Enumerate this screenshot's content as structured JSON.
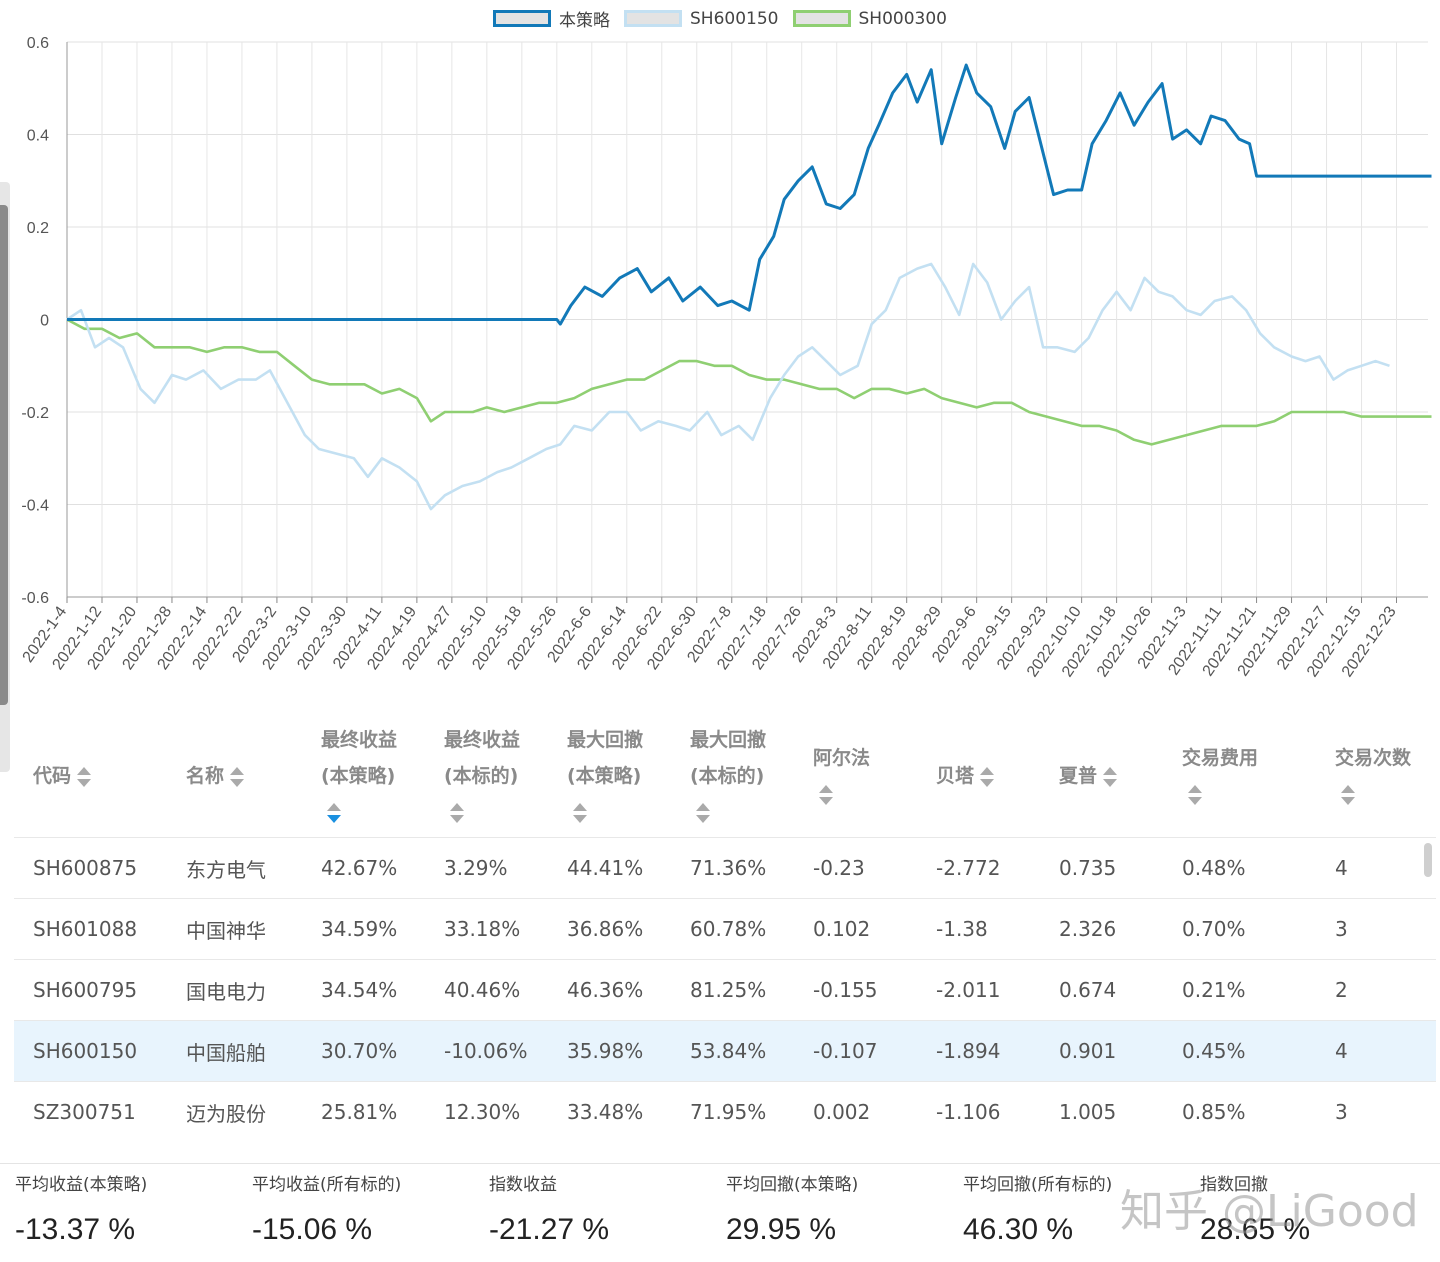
{
  "legend": [
    {
      "label": "本策略",
      "color": "#1279b8",
      "fill": "#e3e3e3"
    },
    {
      "label": "SH600150",
      "color": "#c3e0f2",
      "fill": "#e3e3e3"
    },
    {
      "label": "SH000300",
      "color": "#8fcf72",
      "fill": "#e3e3e3"
    }
  ],
  "chart_data": {
    "type": "line",
    "ylim": [
      -0.6,
      0.6
    ],
    "yticks": [
      "0.6",
      "0.4",
      "0.2",
      "0",
      "-0.2",
      "-0.4",
      "-0.6"
    ],
    "ytick_values": [
      0.6,
      0.4,
      0.2,
      0,
      -0.2,
      -0.4,
      -0.6
    ],
    "xticks": [
      "2022-1-4",
      "2022-1-12",
      "2022-1-20",
      "2022-1-28",
      "2022-2-14",
      "2022-2-22",
      "2022-3-2",
      "2022-3-10",
      "2022-3-30",
      "2022-4-11",
      "2022-4-19",
      "2022-4-27",
      "2022-5-10",
      "2022-5-18",
      "2022-5-26",
      "2022-6-6",
      "2022-6-14",
      "2022-6-22",
      "2022-6-30",
      "2022-7-8",
      "2022-7-18",
      "2022-7-26",
      "2022-8-3",
      "2022-8-11",
      "2022-8-19",
      "2022-8-29",
      "2022-9-6",
      "2022-9-15",
      "2022-9-23",
      "2022-10-10",
      "2022-10-18",
      "2022-10-26",
      "2022-11-3",
      "2022-11-11",
      "2022-11-21",
      "2022-11-29",
      "2022-12-7",
      "2022-12-15",
      "2022-12-23"
    ],
    "series": [
      {
        "name": "本策略",
        "color": "#1279b8",
        "points": [
          [
            0,
            0
          ],
          [
            14,
            0
          ],
          [
            14.1,
            -0.01
          ],
          [
            14.4,
            0.03
          ],
          [
            14.8,
            0.07
          ],
          [
            15.3,
            0.05
          ],
          [
            15.8,
            0.09
          ],
          [
            16.3,
            0.11
          ],
          [
            16.7,
            0.06
          ],
          [
            17.2,
            0.09
          ],
          [
            17.6,
            0.04
          ],
          [
            18.1,
            0.07
          ],
          [
            18.6,
            0.03
          ],
          [
            19,
            0.04
          ],
          [
            19.5,
            0.02
          ],
          [
            19.8,
            0.13
          ],
          [
            20.2,
            0.18
          ],
          [
            20.5,
            0.26
          ],
          [
            20.9,
            0.3
          ],
          [
            21.3,
            0.33
          ],
          [
            21.7,
            0.25
          ],
          [
            22.1,
            0.24
          ],
          [
            22.5,
            0.27
          ],
          [
            22.9,
            0.37
          ],
          [
            23.2,
            0.42
          ],
          [
            23.6,
            0.49
          ],
          [
            24.0,
            0.53
          ],
          [
            24.3,
            0.47
          ],
          [
            24.7,
            0.54
          ],
          [
            25.0,
            0.38
          ],
          [
            25.4,
            0.48
          ],
          [
            25.7,
            0.55
          ],
          [
            26.0,
            0.49
          ],
          [
            26.4,
            0.46
          ],
          [
            26.8,
            0.37
          ],
          [
            27.1,
            0.45
          ],
          [
            27.5,
            0.48
          ],
          [
            27.9,
            0.36
          ],
          [
            28.2,
            0.27
          ],
          [
            28.6,
            0.28
          ],
          [
            29.0,
            0.28
          ],
          [
            29.3,
            0.38
          ],
          [
            29.7,
            0.43
          ],
          [
            30.1,
            0.49
          ],
          [
            30.5,
            0.42
          ],
          [
            30.9,
            0.47
          ],
          [
            31.3,
            0.51
          ],
          [
            31.6,
            0.39
          ],
          [
            32.0,
            0.41
          ],
          [
            32.4,
            0.38
          ],
          [
            32.7,
            0.44
          ],
          [
            33.1,
            0.43
          ],
          [
            33.5,
            0.39
          ],
          [
            33.8,
            0.38
          ],
          [
            34.0,
            0.31
          ],
          [
            39,
            0.31
          ]
        ]
      },
      {
        "name": "SH600150",
        "color": "#c3e0f2",
        "points": [
          [
            0,
            0
          ],
          [
            0.4,
            0.02
          ],
          [
            0.8,
            -0.06
          ],
          [
            1.2,
            -0.04
          ],
          [
            1.6,
            -0.06
          ],
          [
            2.1,
            -0.15
          ],
          [
            2.5,
            -0.18
          ],
          [
            3.0,
            -0.12
          ],
          [
            3.4,
            -0.13
          ],
          [
            3.9,
            -0.11
          ],
          [
            4.4,
            -0.15
          ],
          [
            4.9,
            -0.13
          ],
          [
            5.4,
            -0.13
          ],
          [
            5.8,
            -0.11
          ],
          [
            6.3,
            -0.18
          ],
          [
            6.8,
            -0.25
          ],
          [
            7.2,
            -0.28
          ],
          [
            7.7,
            -0.29
          ],
          [
            8.2,
            -0.3
          ],
          [
            8.6,
            -0.34
          ],
          [
            9.0,
            -0.3
          ],
          [
            9.5,
            -0.32
          ],
          [
            10.0,
            -0.35
          ],
          [
            10.4,
            -0.41
          ],
          [
            10.8,
            -0.38
          ],
          [
            11.3,
            -0.36
          ],
          [
            11.8,
            -0.35
          ],
          [
            12.3,
            -0.33
          ],
          [
            12.7,
            -0.32
          ],
          [
            13.2,
            -0.3
          ],
          [
            13.7,
            -0.28
          ],
          [
            14.1,
            -0.27
          ],
          [
            14.5,
            -0.23
          ],
          [
            15.0,
            -0.24
          ],
          [
            15.5,
            -0.2
          ],
          [
            16.0,
            -0.2
          ],
          [
            16.4,
            -0.24
          ],
          [
            16.9,
            -0.22
          ],
          [
            17.4,
            -0.23
          ],
          [
            17.8,
            -0.24
          ],
          [
            18.3,
            -0.2
          ],
          [
            18.7,
            -0.25
          ],
          [
            19.2,
            -0.23
          ],
          [
            19.6,
            -0.26
          ],
          [
            20.1,
            -0.17
          ],
          [
            20.5,
            -0.12
          ],
          [
            20.9,
            -0.08
          ],
          [
            21.3,
            -0.06
          ],
          [
            21.7,
            -0.09
          ],
          [
            22.1,
            -0.12
          ],
          [
            22.6,
            -0.1
          ],
          [
            23.0,
            -0.01
          ],
          [
            23.4,
            0.02
          ],
          [
            23.8,
            0.09
          ],
          [
            24.3,
            0.11
          ],
          [
            24.7,
            0.12
          ],
          [
            25.1,
            0.07
          ],
          [
            25.5,
            0.01
          ],
          [
            25.9,
            0.12
          ],
          [
            26.3,
            0.08
          ],
          [
            26.7,
            0.0
          ],
          [
            27.1,
            0.04
          ],
          [
            27.5,
            0.07
          ],
          [
            27.9,
            -0.06
          ],
          [
            28.3,
            -0.06
          ],
          [
            28.8,
            -0.07
          ],
          [
            29.2,
            -0.04
          ],
          [
            29.6,
            0.02
          ],
          [
            30.0,
            0.06
          ],
          [
            30.4,
            0.02
          ],
          [
            30.8,
            0.09
          ],
          [
            31.2,
            0.06
          ],
          [
            31.6,
            0.05
          ],
          [
            32.0,
            0.02
          ],
          [
            32.4,
            0.01
          ],
          [
            32.8,
            0.04
          ],
          [
            33.3,
            0.05
          ],
          [
            33.7,
            0.02
          ],
          [
            34.1,
            -0.03
          ],
          [
            34.5,
            -0.06
          ],
          [
            35.0,
            -0.08
          ],
          [
            35.4,
            -0.09
          ],
          [
            35.8,
            -0.08
          ],
          [
            36.2,
            -0.13
          ],
          [
            36.6,
            -0.11
          ],
          [
            37.0,
            -0.1
          ],
          [
            37.4,
            -0.09
          ],
          [
            37.8,
            -0.1
          ]
        ]
      },
      {
        "name": "SH000300",
        "color": "#8fcf72",
        "points": [
          [
            0,
            0
          ],
          [
            0.5,
            -0.02
          ],
          [
            1.0,
            -0.02
          ],
          [
            1.5,
            -0.04
          ],
          [
            2.0,
            -0.03
          ],
          [
            2.5,
            -0.06
          ],
          [
            3.0,
            -0.06
          ],
          [
            3.5,
            -0.06
          ],
          [
            4.0,
            -0.07
          ],
          [
            4.5,
            -0.06
          ],
          [
            5.0,
            -0.06
          ],
          [
            5.5,
            -0.07
          ],
          [
            6.0,
            -0.07
          ],
          [
            6.5,
            -0.1
          ],
          [
            7.0,
            -0.13
          ],
          [
            7.5,
            -0.14
          ],
          [
            8.0,
            -0.14
          ],
          [
            8.5,
            -0.14
          ],
          [
            9.0,
            -0.16
          ],
          [
            9.5,
            -0.15
          ],
          [
            10.0,
            -0.17
          ],
          [
            10.4,
            -0.22
          ],
          [
            10.8,
            -0.2
          ],
          [
            11.2,
            -0.2
          ],
          [
            11.6,
            -0.2
          ],
          [
            12.0,
            -0.19
          ],
          [
            12.5,
            -0.2
          ],
          [
            13.0,
            -0.19
          ],
          [
            13.5,
            -0.18
          ],
          [
            14.0,
            -0.18
          ],
          [
            14.5,
            -0.17
          ],
          [
            15.0,
            -0.15
          ],
          [
            15.5,
            -0.14
          ],
          [
            16.0,
            -0.13
          ],
          [
            16.5,
            -0.13
          ],
          [
            17.0,
            -0.11
          ],
          [
            17.5,
            -0.09
          ],
          [
            18.0,
            -0.09
          ],
          [
            18.5,
            -0.1
          ],
          [
            19.0,
            -0.1
          ],
          [
            19.5,
            -0.12
          ],
          [
            20.0,
            -0.13
          ],
          [
            20.5,
            -0.13
          ],
          [
            21.0,
            -0.14
          ],
          [
            21.5,
            -0.15
          ],
          [
            22.0,
            -0.15
          ],
          [
            22.5,
            -0.17
          ],
          [
            23.0,
            -0.15
          ],
          [
            23.5,
            -0.15
          ],
          [
            24.0,
            -0.16
          ],
          [
            24.5,
            -0.15
          ],
          [
            25.0,
            -0.17
          ],
          [
            25.5,
            -0.18
          ],
          [
            26.0,
            -0.19
          ],
          [
            26.5,
            -0.18
          ],
          [
            27.0,
            -0.18
          ],
          [
            27.5,
            -0.2
          ],
          [
            28.0,
            -0.21
          ],
          [
            28.5,
            -0.22
          ],
          [
            29.0,
            -0.23
          ],
          [
            29.5,
            -0.23
          ],
          [
            30.0,
            -0.24
          ],
          [
            30.5,
            -0.26
          ],
          [
            31.0,
            -0.27
          ],
          [
            31.5,
            -0.26
          ],
          [
            32.0,
            -0.25
          ],
          [
            32.5,
            -0.24
          ],
          [
            33.0,
            -0.23
          ],
          [
            33.5,
            -0.23
          ],
          [
            34.0,
            -0.23
          ],
          [
            34.5,
            -0.22
          ],
          [
            35.0,
            -0.2
          ],
          [
            35.5,
            -0.2
          ],
          [
            36.0,
            -0.2
          ],
          [
            36.5,
            -0.2
          ],
          [
            37.0,
            -0.21
          ],
          [
            37.5,
            -0.21
          ],
          [
            38.0,
            -0.21
          ],
          [
            38.5,
            -0.21
          ],
          [
            39,
            -0.21
          ]
        ]
      }
    ]
  },
  "table": {
    "headers": [
      {
        "l1": "代码",
        "l2": ""
      },
      {
        "l1": "名称",
        "l2": ""
      },
      {
        "l1": "最终收益",
        "l2": "(本策略)"
      },
      {
        "l1": "最终收益",
        "l2": "(本标的)"
      },
      {
        "l1": "最大回撤",
        "l2": "(本策略)"
      },
      {
        "l1": "最大回撤",
        "l2": "(本标的)"
      },
      {
        "l1": "阿尔法",
        "l2": ""
      },
      {
        "l1": "贝塔",
        "l2": ""
      },
      {
        "l1": "夏普",
        "l2": ""
      },
      {
        "l1": "交易费用",
        "l2": ""
      },
      {
        "l1": "交易次数",
        "l2": ""
      }
    ],
    "rows": [
      [
        "SH600875",
        "东方电气",
        "42.67%",
        "3.29%",
        "44.41%",
        "71.36%",
        "-0.23",
        "-2.772",
        "0.735",
        "0.48%",
        "4"
      ],
      [
        "SH601088",
        "中国神华",
        "34.59%",
        "33.18%",
        "36.86%",
        "60.78%",
        "0.102",
        "-1.38",
        "2.326",
        "0.70%",
        "3"
      ],
      [
        "SH600795",
        "国电电力",
        "34.54%",
        "40.46%",
        "46.36%",
        "81.25%",
        "-0.155",
        "-2.011",
        "0.674",
        "0.21%",
        "2"
      ],
      [
        "SH600150",
        "中国船舶",
        "30.70%",
        "-10.06%",
        "35.98%",
        "53.84%",
        "-0.107",
        "-1.894",
        "0.901",
        "0.45%",
        "4"
      ],
      [
        "SZ300751",
        "迈为股份",
        "25.81%",
        "12.30%",
        "33.48%",
        "71.95%",
        "0.002",
        "-1.106",
        "1.005",
        "0.85%",
        "3"
      ]
    ]
  },
  "summary": [
    {
      "label": "平均收益(本策略)",
      "value": "-13.37 %"
    },
    {
      "label": "平均收益(所有标的)",
      "value": "-15.06 %"
    },
    {
      "label": "指数收益",
      "value": "-21.27 %"
    },
    {
      "label": "平均回撤(本策略)",
      "value": "29.95 %"
    },
    {
      "label": "平均回撤(所有标的)",
      "value": "46.30 %"
    },
    {
      "label": "指数回撤",
      "value": "28.65 %"
    }
  ],
  "watermark": "知乎 @LiGood"
}
